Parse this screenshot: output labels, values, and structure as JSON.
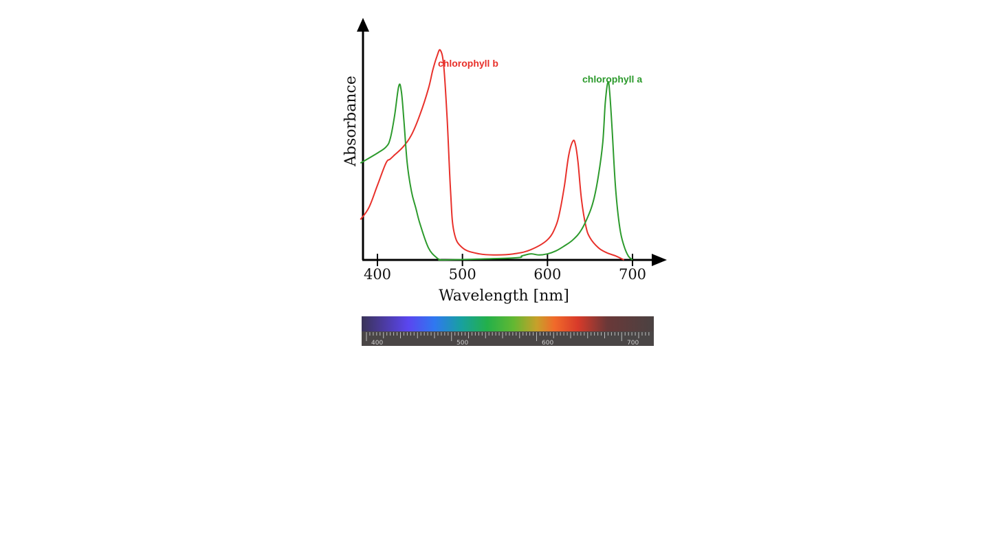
{
  "chart_data": {
    "type": "line",
    "title": "",
    "xlabel": "Wavelength [nm]",
    "ylabel": "Absorbance",
    "xlim": [
      380,
      740
    ],
    "ylim": [
      0,
      1
    ],
    "xticks": [
      400,
      500,
      600,
      700
    ],
    "grid": false,
    "series": [
      {
        "name": "chlorophyll b",
        "color": "#e8302a",
        "x": [
          380,
          390,
          400,
          410,
          415,
          420,
          430,
          440,
          450,
          460,
          465,
          470,
          474,
          478,
          482,
          486,
          490,
          500,
          520,
          540,
          560,
          580,
          600,
          610,
          615,
          620,
          625,
          630,
          633,
          636,
          640,
          645,
          650,
          660,
          670,
          680,
          690
        ],
        "y": [
          0.2,
          0.26,
          0.37,
          0.48,
          0.5,
          0.52,
          0.56,
          0.62,
          0.72,
          0.85,
          0.94,
          1.01,
          1.04,
          0.96,
          0.7,
          0.34,
          0.14,
          0.06,
          0.03,
          0.025,
          0.03,
          0.05,
          0.1,
          0.17,
          0.25,
          0.37,
          0.52,
          0.59,
          0.57,
          0.48,
          0.3,
          0.17,
          0.11,
          0.06,
          0.035,
          0.02,
          0.0
        ]
      },
      {
        "name": "chlorophyll a",
        "color": "#2c9a2c",
        "x": [
          380,
          400,
          410,
          415,
          420,
          425,
          428,
          431,
          435,
          440,
          445,
          450,
          460,
          470,
          475,
          480,
          560,
          570,
          580,
          590,
          600,
          610,
          620,
          630,
          640,
          650,
          655,
          660,
          665,
          668,
          671,
          673,
          676,
          680,
          685,
          690,
          695,
          700
        ],
        "y": [
          0.48,
          0.53,
          0.56,
          0.6,
          0.71,
          0.86,
          0.84,
          0.7,
          0.48,
          0.34,
          0.26,
          0.18,
          0.06,
          0.01,
          0.0,
          0.0,
          0.01,
          0.02,
          0.03,
          0.025,
          0.03,
          0.045,
          0.07,
          0.1,
          0.15,
          0.24,
          0.31,
          0.42,
          0.58,
          0.78,
          0.88,
          0.84,
          0.65,
          0.36,
          0.16,
          0.07,
          0.02,
          0.0
        ]
      }
    ],
    "annotations": [
      {
        "text": "chlorophyll b",
        "series": 0
      },
      {
        "text": "chlorophyll a",
        "series": 1
      }
    ]
  },
  "spectrum_scale": {
    "labels": [
      "400",
      "500",
      "600",
      "700"
    ]
  }
}
